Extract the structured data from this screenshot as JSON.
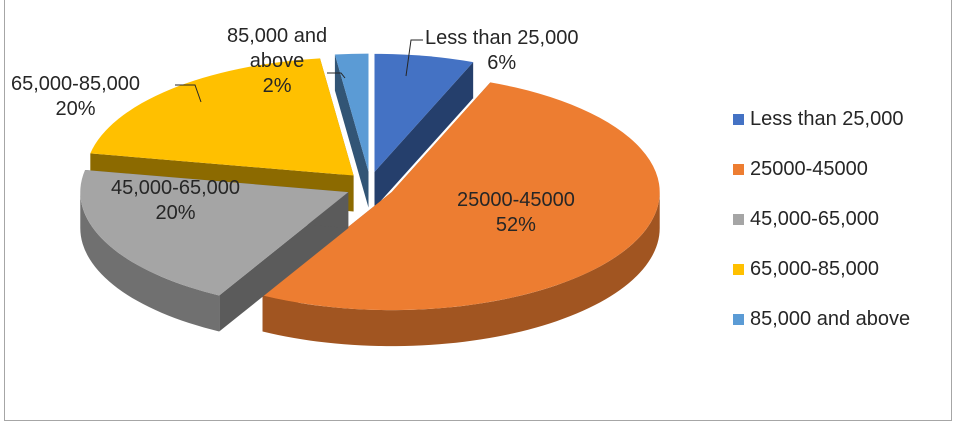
{
  "chart_data": {
    "type": "pie",
    "three_d": true,
    "exploded": true,
    "labels": [
      "Less than 25,000",
      "25000-45000",
      "45,000-65,000",
      "65,000-85,000",
      "85,000 and above"
    ],
    "values": [
      6,
      52,
      20,
      20,
      2
    ],
    "value_labels": [
      "6%",
      "52%",
      "20%",
      "20%",
      "2%"
    ],
    "colors": [
      "#4472c4",
      "#ed7d31",
      "#a5a5a5",
      "#ffc000",
      "#5b9bd5"
    ],
    "legend": {
      "position": "right",
      "entries": [
        "Less than 25,000",
        "25000-45000",
        "45,000-65,000",
        "65,000-85,000",
        "85,000 and above"
      ]
    },
    "data_label_lines": [
      [
        "Less than 25,000",
        "6%"
      ],
      [
        "25000-45000",
        "52%"
      ],
      [
        "45,000-65,000",
        "20%"
      ],
      [
        "65,000-85,000",
        "20%"
      ],
      [
        "85,000 and",
        "above",
        "2%"
      ]
    ]
  }
}
